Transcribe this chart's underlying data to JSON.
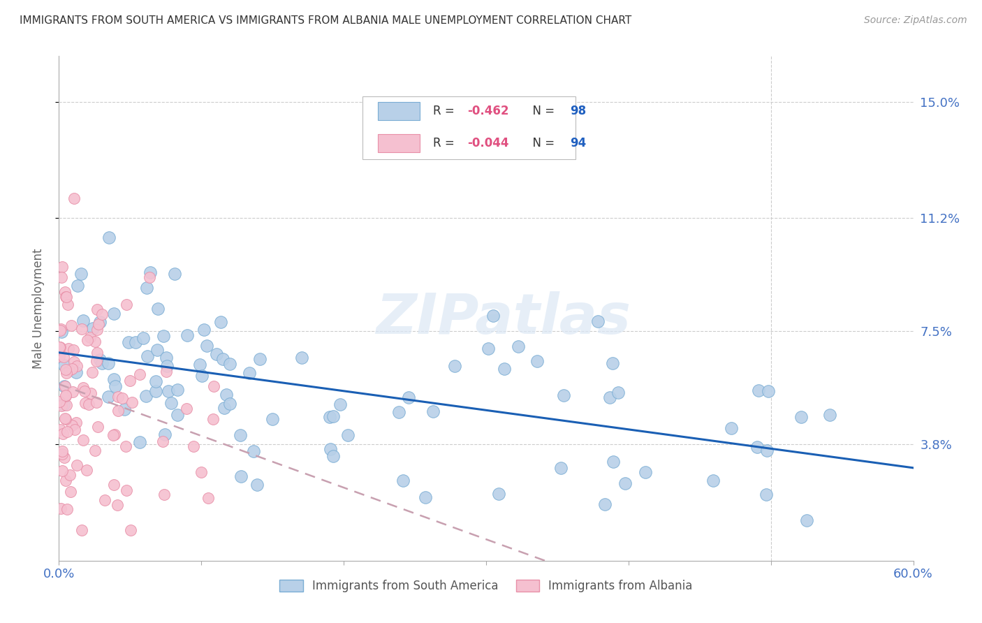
{
  "title": "IMMIGRANTS FROM SOUTH AMERICA VS IMMIGRANTS FROM ALBANIA MALE UNEMPLOYMENT CORRELATION CHART",
  "source": "Source: ZipAtlas.com",
  "ylabel": "Male Unemployment",
  "watermark": "ZIPatlas",
  "series1_name": "Immigrants from South America",
  "series1_color": "#b8d0e8",
  "series1_edge": "#7aadd4",
  "series1_R": -0.462,
  "series1_N": 98,
  "series2_name": "Immigrants from Albania",
  "series2_color": "#f5c0d0",
  "series2_edge": "#e890a8",
  "series2_R": -0.044,
  "series2_N": 94,
  "trend1_color": "#1a5fb4",
  "trend2_color": "#c8a0b0",
  "xlim": [
    0.0,
    0.6
  ],
  "ylim": [
    0.0,
    0.165
  ],
  "yticks": [
    0.038,
    0.075,
    0.112,
    0.15
  ],
  "ytick_labels": [
    "3.8%",
    "7.5%",
    "11.2%",
    "15.0%"
  ],
  "xticks": [
    0.0,
    0.1,
    0.2,
    0.3,
    0.4,
    0.5,
    0.6
  ],
  "background_color": "#ffffff",
  "title_color": "#333333",
  "title_fontsize": 11,
  "axis_label_color": "#4472c4",
  "grid_color": "#cccccc",
  "text_color_R": "#e05080",
  "text_color_N": "#2060c0"
}
